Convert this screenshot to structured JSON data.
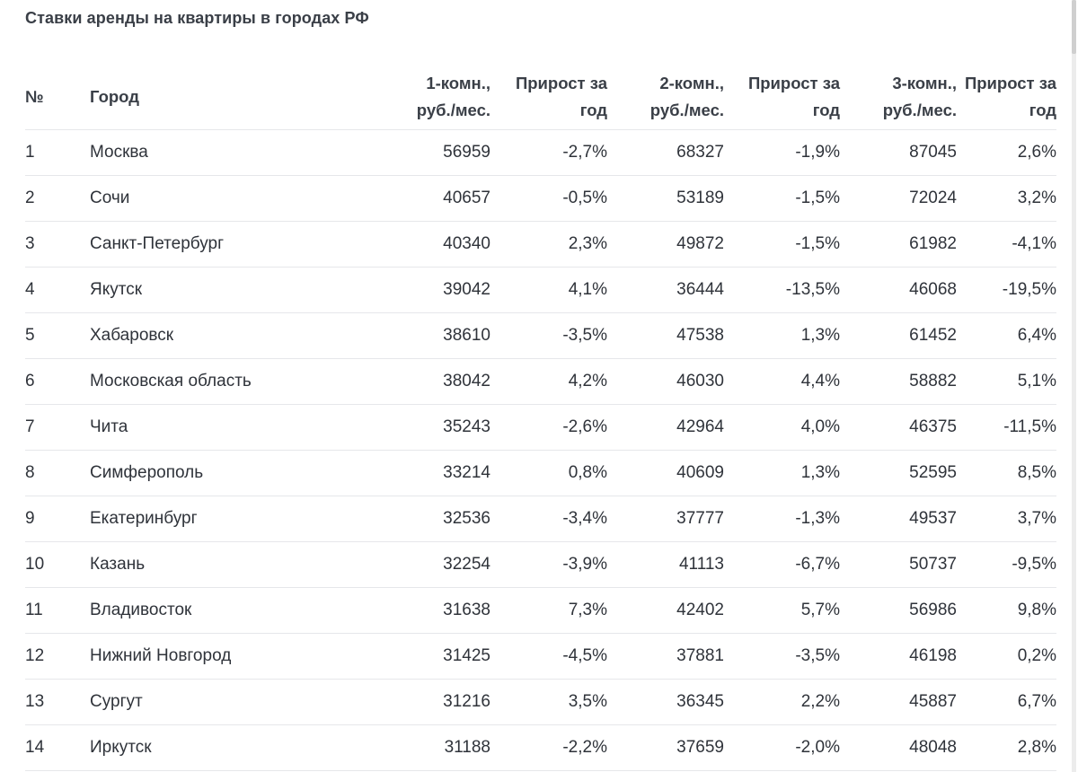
{
  "title": "Ставки аренды на квартиры в городах РФ",
  "headers": {
    "num": "№",
    "city": "Город",
    "rent1_line1": "1-комн.,",
    "rent1_line2": "руб./мес.",
    "growth1_line1": "Прирост за",
    "growth1_line2": "год",
    "rent2_line1": "2-комн.,",
    "rent2_line2": "руб./мес.",
    "growth2_line1": "Прирост за",
    "growth2_line2": "год",
    "rent3_line1": "3-комн.,",
    "rent3_line2": "руб./мес.",
    "growth3_line1": "Прирост за",
    "growth3_line2": "год"
  },
  "rows": [
    {
      "num": "1",
      "city": "Москва",
      "r1": "56959",
      "g1": "-2,7%",
      "r2": "68327",
      "g2": "-1,9%",
      "r3": "87045",
      "g3": "2,6%"
    },
    {
      "num": "2",
      "city": "Сочи",
      "r1": "40657",
      "g1": "-0,5%",
      "r2": "53189",
      "g2": "-1,5%",
      "r3": "72024",
      "g3": "3,2%"
    },
    {
      "num": "3",
      "city": "Санкт-Петербург",
      "r1": "40340",
      "g1": "2,3%",
      "r2": "49872",
      "g2": "-1,5%",
      "r3": "61982",
      "g3": "-4,1%"
    },
    {
      "num": "4",
      "city": "Якутск",
      "r1": "39042",
      "g1": "4,1%",
      "r2": "36444",
      "g2": "-13,5%",
      "r3": "46068",
      "g3": "-19,5%"
    },
    {
      "num": "5",
      "city": "Хабаровск",
      "r1": "38610",
      "g1": "-3,5%",
      "r2": "47538",
      "g2": "1,3%",
      "r3": "61452",
      "g3": "6,4%"
    },
    {
      "num": "6",
      "city": "Московская область",
      "r1": "38042",
      "g1": "4,2%",
      "r2": "46030",
      "g2": "4,4%",
      "r3": "58882",
      "g3": "5,1%"
    },
    {
      "num": "7",
      "city": "Чита",
      "r1": "35243",
      "g1": "-2,6%",
      "r2": "42964",
      "g2": "4,0%",
      "r3": "46375",
      "g3": "-11,5%"
    },
    {
      "num": "8",
      "city": "Симферополь",
      "r1": "33214",
      "g1": "0,8%",
      "r2": "40609",
      "g2": "1,3%",
      "r3": "52595",
      "g3": "8,5%"
    },
    {
      "num": "9",
      "city": "Екатеринбург",
      "r1": "32536",
      "g1": "-3,4%",
      "r2": "37777",
      "g2": "-1,3%",
      "r3": "49537",
      "g3": "3,7%"
    },
    {
      "num": "10",
      "city": "Казань",
      "r1": "32254",
      "g1": "-3,9%",
      "r2": "41113",
      "g2": "-6,7%",
      "r3": "50737",
      "g3": "-9,5%"
    },
    {
      "num": "11",
      "city": "Владивосток",
      "r1": "31638",
      "g1": "7,3%",
      "r2": "42402",
      "g2": "5,7%",
      "r3": "56986",
      "g3": "9,8%"
    },
    {
      "num": "12",
      "city": "Нижний Новгород",
      "r1": "31425",
      "g1": "-4,5%",
      "r2": "37881",
      "g2": "-3,5%",
      "r3": "46198",
      "g3": "0,2%"
    },
    {
      "num": "13",
      "city": "Сургут",
      "r1": "31216",
      "g1": "3,5%",
      "r2": "36345",
      "g2": "2,2%",
      "r3": "45887",
      "g3": "6,7%"
    },
    {
      "num": "14",
      "city": "Иркутск",
      "r1": "31188",
      "g1": "-2,2%",
      "r2": "37659",
      "g2": "-2,0%",
      "r3": "48048",
      "g3": "2,8%"
    }
  ]
}
